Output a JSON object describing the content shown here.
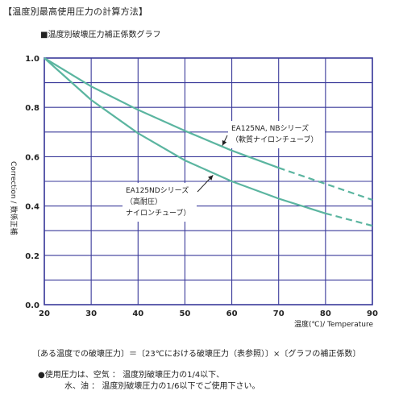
{
  "heading": "【温度別最高使用圧力の計算方法】",
  "subtitle": "■温度別破壊圧力補正係数グラフ",
  "chart_data": {
    "type": "line",
    "xlim": [
      20,
      90
    ],
    "ylim": [
      0.0,
      1.0
    ],
    "x_ticks": [
      "20",
      "30",
      "40",
      "50",
      "60",
      "70",
      "80",
      "90"
    ],
    "y_ticks": [
      "0.0",
      "0.2",
      "0.4",
      "0.6",
      "0.8",
      "1.0"
    ],
    "xlabel": "温度(℃)/ Temperature",
    "ylabel": "Correction / 数係正補",
    "grid": true,
    "series": [
      {
        "name": "EA125NA, NBシリーズ (軟質ナイロンチューブ)",
        "label_lines": [
          "EA125NA, NBシリーズ",
          "（軟質ナイロンチューブ）"
        ],
        "color": "#5bb5a0",
        "solid": [
          [
            20,
            1.0
          ],
          [
            30,
            0.885
          ],
          [
            40,
            0.79
          ],
          [
            50,
            0.705
          ],
          [
            60,
            0.625
          ],
          [
            70,
            0.555
          ]
        ],
        "dashed": [
          [
            70,
            0.555
          ],
          [
            80,
            0.49
          ],
          [
            90,
            0.425
          ]
        ]
      },
      {
        "name": "EA125NDシリーズ (高耐圧ナイロンチューブ)",
        "label_lines": [
          "EA125NDシリーズ",
          "（高耐圧）",
          "ナイロンチューブ）"
        ],
        "color": "#5bb5a0",
        "solid": [
          [
            20,
            1.0
          ],
          [
            30,
            0.83
          ],
          [
            40,
            0.695
          ],
          [
            50,
            0.585
          ],
          [
            60,
            0.5
          ],
          [
            70,
            0.43
          ],
          [
            80,
            0.37
          ]
        ],
        "dashed": [
          [
            80,
            0.37
          ],
          [
            90,
            0.32
          ]
        ]
      }
    ]
  },
  "formula": "〔ある温度での破壊圧力〕＝〔23℃における破壊圧力（表参照）〕×〔グラフの補正係数〕",
  "notes": [
    "●使用圧力は、空気 ： 温度別破壊圧力の1/4以下、",
    "水、油 ： 温度別破壊圧力の1/6以下でご使用下さい。"
  ]
}
